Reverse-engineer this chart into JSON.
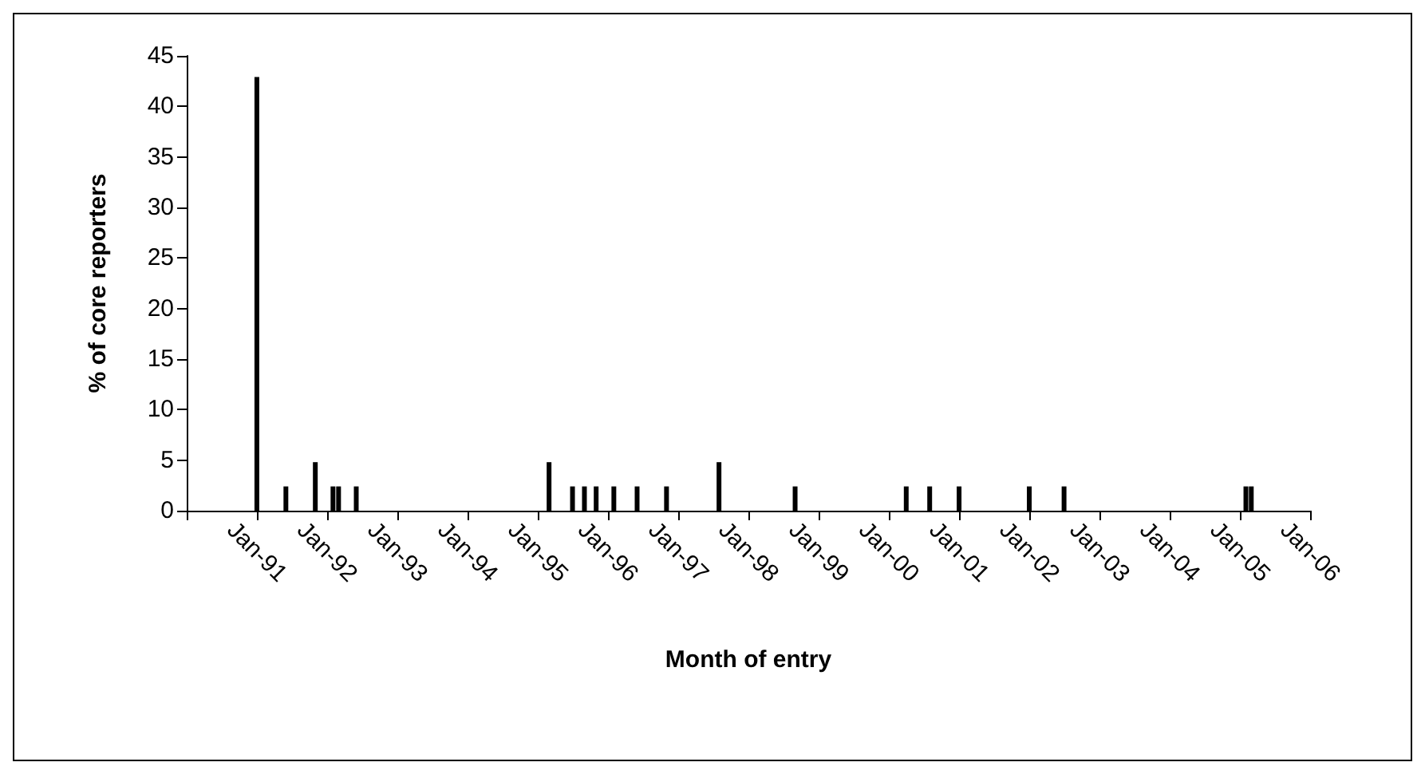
{
  "chart_data": {
    "type": "bar",
    "xlabel": "Month of entry",
    "ylabel": "% of core reporters",
    "x": [
      "1991-01",
      "1991-06",
      "1991-11",
      "1992-02",
      "1992-03",
      "1992-06",
      "1995-03",
      "1995-07",
      "1995-09",
      "1995-11",
      "1996-02",
      "1996-06",
      "1996-11",
      "1997-08",
      "1998-09",
      "2000-04",
      "2000-08",
      "2001-01",
      "2002-01",
      "2002-07",
      "2005-02",
      "2005-03"
    ],
    "values": [
      42.9,
      2.4,
      4.8,
      2.4,
      2.4,
      2.4,
      4.8,
      2.4,
      2.4,
      2.4,
      2.4,
      2.4,
      2.4,
      4.8,
      2.4,
      2.4,
      2.4,
      2.4,
      2.4,
      2.4,
      2.4,
      2.4
    ],
    "color": "#000000",
    "xlim": [
      "1990-01",
      "2006-01"
    ],
    "xticks": [
      {
        "value": "1990-01",
        "label": null
      },
      {
        "value": "1991-01",
        "label": "Jan-91"
      },
      {
        "value": "1992-01",
        "label": "Jan-92"
      },
      {
        "value": "1993-01",
        "label": "Jan-93"
      },
      {
        "value": "1994-01",
        "label": "Jan-94"
      },
      {
        "value": "1995-01",
        "label": "Jan-95"
      },
      {
        "value": "1996-01",
        "label": "Jan-96"
      },
      {
        "value": "1997-01",
        "label": "Jan-97"
      },
      {
        "value": "1998-01",
        "label": "Jan-98"
      },
      {
        "value": "1999-01",
        "label": "Jan-99"
      },
      {
        "value": "2000-01",
        "label": "Jan-00"
      },
      {
        "value": "2001-01",
        "label": "Jan-01"
      },
      {
        "value": "2002-01",
        "label": "Jan-02"
      },
      {
        "value": "2003-01",
        "label": "Jan-03"
      },
      {
        "value": "2004-01",
        "label": "Jan-04"
      },
      {
        "value": "2005-01",
        "label": "Jan-05"
      },
      {
        "value": "2006-01",
        "label": "Jan-06"
      }
    ],
    "ylim": [
      0,
      45
    ],
    "yticks": [
      0,
      5,
      10,
      15,
      20,
      25,
      30,
      35,
      40,
      45
    ],
    "grid": false
  }
}
